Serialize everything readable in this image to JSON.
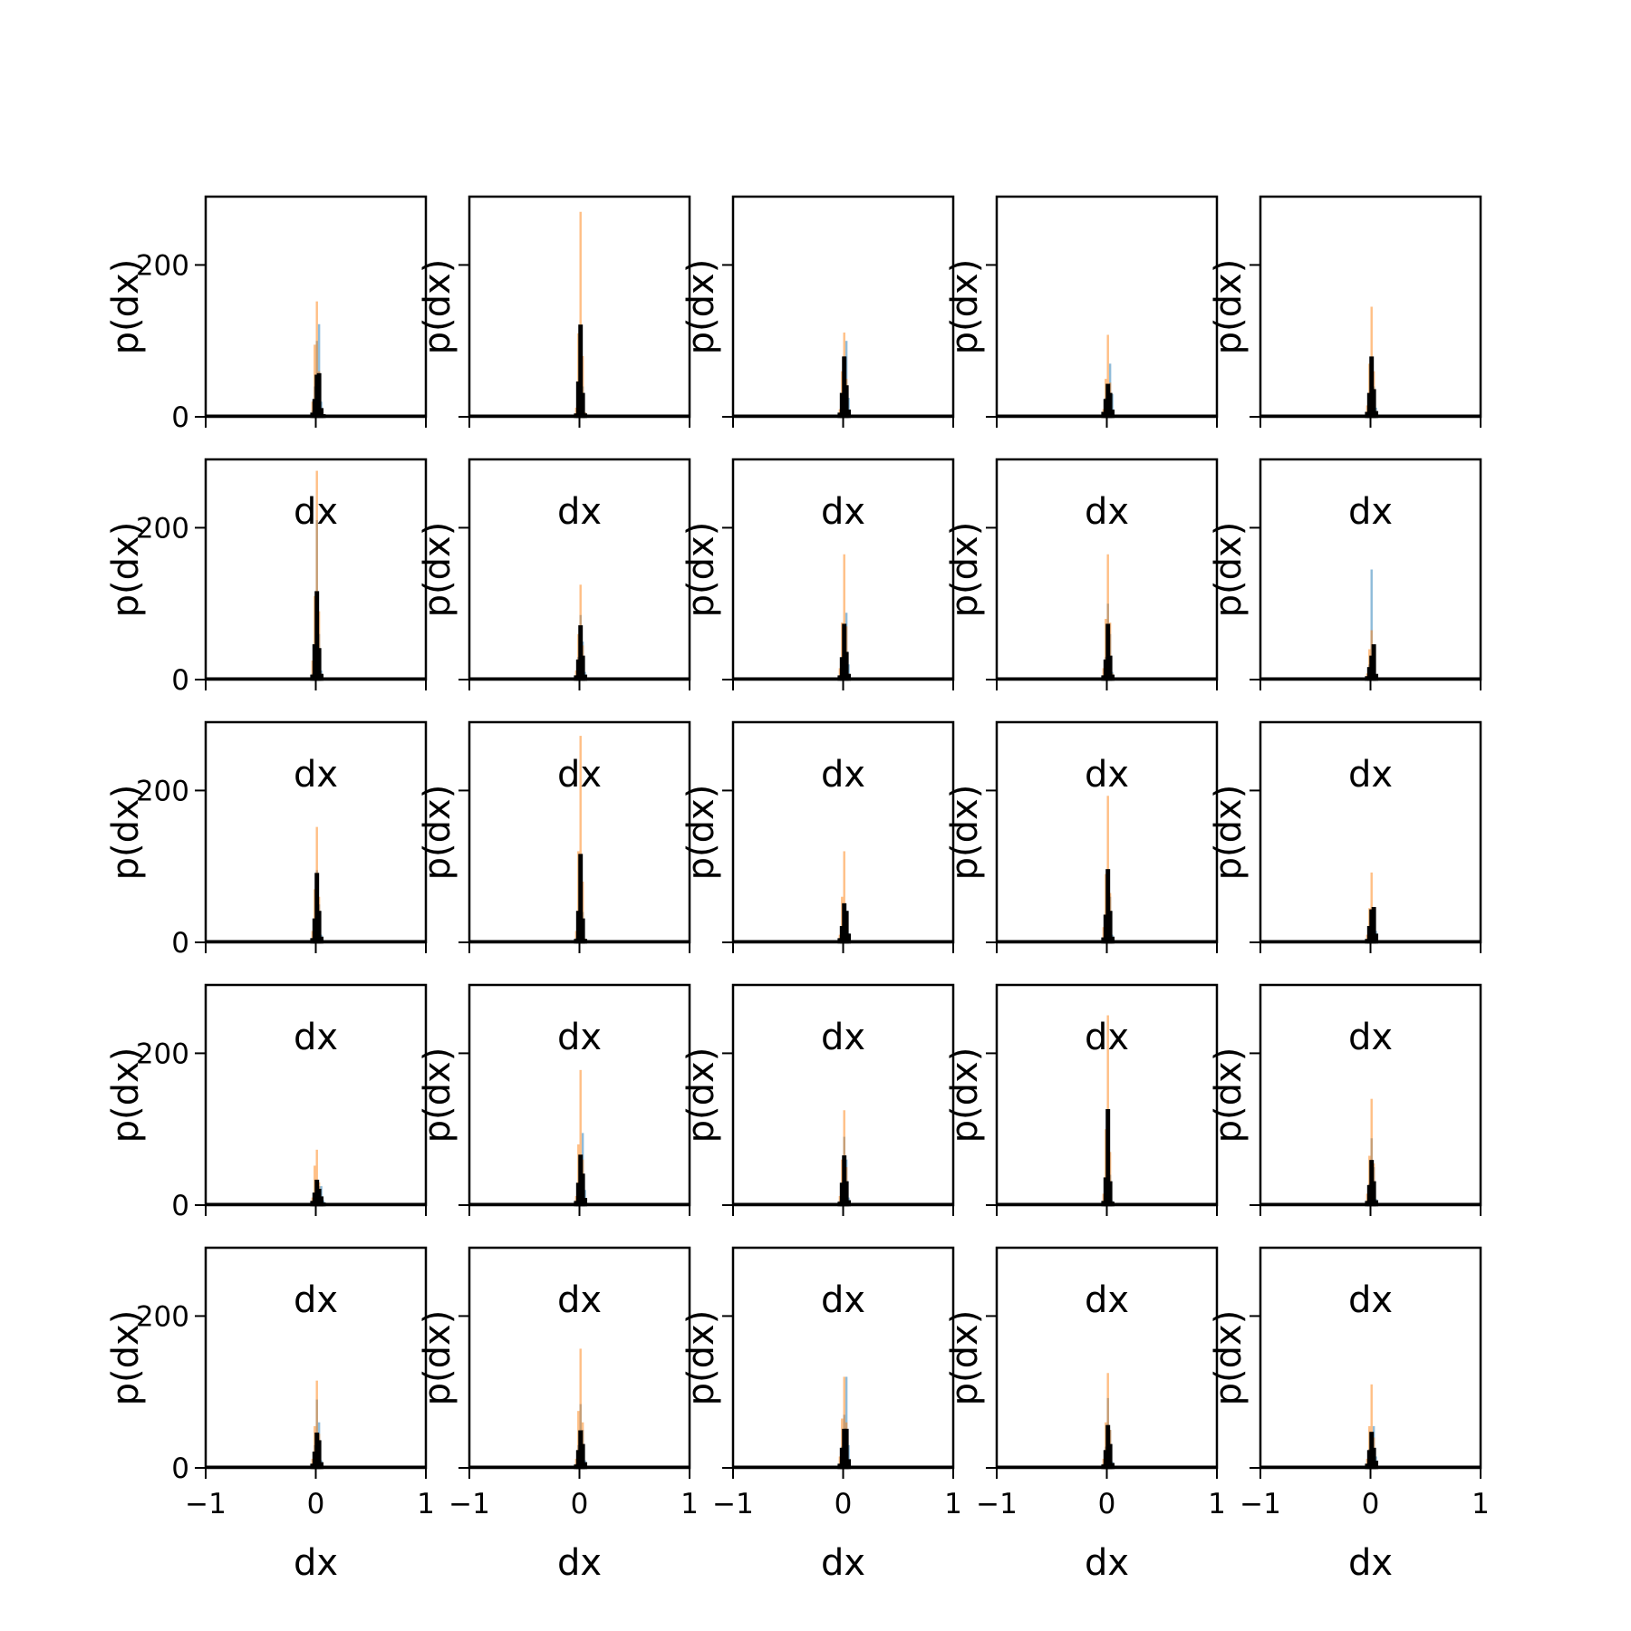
{
  "figure": {
    "background": "#ffffff",
    "rows": 5,
    "cols": 5
  },
  "style": {
    "series_colors": [
      "#1f77b4",
      "#ff7f0e",
      "#000000"
    ],
    "series_alpha": [
      0.5,
      0.5,
      1.0
    ]
  },
  "axis_labels": {
    "xlabel": "dx",
    "ylabel": "p(dx)"
  },
  "chart_data": {
    "type": "bar",
    "layout": "5x5 grid of histogram panels, shared x and y axes",
    "xlim": [
      -1,
      1
    ],
    "ylim": [
      0,
      290
    ],
    "x_ticks": [
      "−1",
      "0",
      "1"
    ],
    "y_ticks": [
      "0",
      "200"
    ],
    "bin_x": [
      -0.04,
      -0.02,
      0.0,
      0.02,
      0.04,
      0.06
    ],
    "grid": false,
    "legend": "none",
    "panels": [
      {
        "series": [
          {
            "values": [
              8,
              40,
              100,
              122,
              20,
              3
            ]
          },
          {
            "values": [
              20,
              95,
              152,
              60,
              6,
              0
            ]
          },
          {
            "values": [
              4,
              22,
              54,
              56,
              10,
              2
            ]
          }
        ]
      },
      {
        "series": [
          {
            "values": [
              4,
              35,
              92,
              40,
              6,
              0
            ]
          },
          {
            "values": [
              12,
              110,
              270,
              80,
              6,
              0
            ]
          },
          {
            "values": [
              3,
              45,
              120,
              30,
              3,
              0
            ]
          }
        ]
      },
      {
        "series": [
          {
            "values": [
              6,
              30,
              80,
              100,
              25,
              3
            ]
          },
          {
            "values": [
              10,
              60,
              111,
              50,
              8,
              0
            ]
          },
          {
            "values": [
              4,
              30,
              78,
              40,
              8,
              0
            ]
          }
        ]
      },
      {
        "series": [
          {
            "values": [
              6,
              25,
              40,
              70,
              30,
              2
            ]
          },
          {
            "values": [
              10,
              50,
              108,
              45,
              6,
              0
            ]
          },
          {
            "values": [
              5,
              22,
              42,
              30,
              8,
              0
            ]
          }
        ]
      },
      {
        "series": [
          {
            "values": [
              6,
              28,
              60,
              40,
              12,
              2
            ]
          },
          {
            "values": [
              15,
              70,
              145,
              60,
              8,
              0
            ]
          },
          {
            "values": [
              5,
              30,
              78,
              35,
              6,
              0
            ]
          }
        ]
      },
      {
        "series": [
          {
            "values": [
              8,
              40,
              210,
              60,
              12,
              2
            ]
          },
          {
            "values": [
              25,
              110,
              275,
              90,
              8,
              0
            ]
          },
          {
            "values": [
              5,
              45,
              115,
              40,
              6,
              0
            ]
          }
        ]
      },
      {
        "series": [
          {
            "values": [
              6,
              30,
              85,
              50,
              10,
              0
            ]
          },
          {
            "values": [
              12,
              60,
              125,
              45,
              5,
              0
            ]
          },
          {
            "values": [
              4,
              25,
              70,
              30,
              5,
              0
            ]
          }
        ]
      },
      {
        "series": [
          {
            "values": [
              6,
              30,
              60,
              88,
              20,
              2
            ]
          },
          {
            "values": [
              15,
              75,
              165,
              70,
              8,
              0
            ]
          },
          {
            "values": [
              4,
              28,
              72,
              35,
              6,
              0
            ]
          }
        ]
      },
      {
        "series": [
          {
            "values": [
              6,
              30,
              100,
              60,
              10,
              0
            ]
          },
          {
            "values": [
              15,
              80,
              165,
              75,
              8,
              0
            ]
          },
          {
            "values": [
              4,
              25,
              72,
              30,
              5,
              0
            ]
          }
        ]
      },
      {
        "series": [
          {
            "values": [
              4,
              20,
              145,
              40,
              6,
              0
            ]
          },
          {
            "values": [
              8,
              40,
              65,
              20,
              3,
              0
            ]
          },
          {
            "values": [
              3,
              15,
              30,
              45,
              6,
              0
            ]
          }
        ]
      },
      {
        "series": [
          {
            "values": [
              6,
              30,
              95,
              50,
              10,
              0
            ]
          },
          {
            "values": [
              15,
              70,
              152,
              60,
              6,
              0
            ]
          },
          {
            "values": [
              4,
              30,
              90,
              40,
              6,
              0
            ]
          }
        ]
      },
      {
        "series": [
          {
            "values": [
              6,
              40,
              95,
              40,
              5,
              0
            ]
          },
          {
            "values": [
              15,
              120,
              272,
              80,
              5,
              0
            ]
          },
          {
            "values": [
              3,
              40,
              115,
              30,
              3,
              0
            ]
          }
        ]
      },
      {
        "series": [
          {
            "values": [
              6,
              20,
              35,
              25,
              12,
              2
            ]
          },
          {
            "values": [
              10,
              60,
              120,
              40,
              5,
              0
            ]
          },
          {
            "values": [
              4,
              20,
              50,
              40,
              10,
              0
            ]
          }
        ]
      },
      {
        "series": [
          {
            "values": [
              6,
              30,
              95,
              60,
              10,
              0
            ]
          },
          {
            "values": [
              20,
              90,
              193,
              65,
              6,
              0
            ]
          },
          {
            "values": [
              5,
              35,
              95,
              40,
              6,
              0
            ]
          }
        ]
      },
      {
        "series": [
          {
            "values": [
              4,
              20,
              30,
              45,
              15,
              2
            ]
          },
          {
            "values": [
              10,
              45,
              92,
              40,
              5,
              0
            ]
          },
          {
            "values": [
              3,
              20,
              42,
              45,
              10,
              0
            ]
          }
        ]
      },
      {
        "series": [
          {
            "values": [
              6,
              15,
              20,
              25,
              25,
              6
            ]
          },
          {
            "values": [
              10,
              52,
              73,
              30,
              5,
              0
            ]
          },
          {
            "values": [
              4,
              15,
              32,
              20,
              10,
              2
            ]
          }
        ]
      },
      {
        "series": [
          {
            "values": [
              6,
              20,
              40,
              95,
              20,
              2
            ]
          },
          {
            "values": [
              12,
              80,
              178,
              60,
              6,
              0
            ]
          },
          {
            "values": [
              4,
              28,
              65,
              40,
              8,
              0
            ]
          }
        ]
      },
      {
        "series": [
          {
            "values": [
              6,
              30,
              90,
              60,
              10,
              0
            ]
          },
          {
            "values": [
              12,
              60,
              125,
              50,
              6,
              0
            ]
          },
          {
            "values": [
              3,
              28,
              64,
              30,
              5,
              0
            ]
          }
        ]
      },
      {
        "series": [
          {
            "values": [
              6,
              30,
              125,
              40,
              6,
              0
            ]
          },
          {
            "values": [
              15,
              100,
              250,
              70,
              5,
              0
            ]
          },
          {
            "values": [
              4,
              35,
              125,
              30,
              3,
              0
            ]
          }
        ]
      },
      {
        "series": [
          {
            "values": [
              6,
              28,
              88,
              50,
              8,
              0
            ]
          },
          {
            "values": [
              15,
              65,
              140,
              55,
              5,
              0
            ]
          },
          {
            "values": [
              4,
              25,
              58,
              30,
              5,
              0
            ]
          }
        ]
      },
      {
        "series": [
          {
            "values": [
              6,
              30,
              90,
              60,
              10,
              0
            ]
          },
          {
            "values": [
              12,
              55,
              115,
              45,
              5,
              0
            ]
          },
          {
            "values": [
              4,
              20,
              45,
              35,
              6,
              0
            ]
          }
        ]
      },
      {
        "series": [
          {
            "values": [
              6,
              30,
              84,
              50,
              10,
              0
            ]
          },
          {
            "values": [
              12,
              75,
              157,
              60,
              5,
              0
            ]
          },
          {
            "values": [
              3,
              22,
              48,
              30,
              6,
              0
            ]
          }
        ]
      },
      {
        "series": [
          {
            "values": [
              6,
              28,
              70,
              120,
              30,
              3
            ]
          },
          {
            "values": [
              15,
              65,
              120,
              60,
              8,
              0
            ]
          },
          {
            "values": [
              4,
              25,
              50,
              50,
              10,
              0
            ]
          }
        ]
      },
      {
        "series": [
          {
            "values": [
              6,
              28,
              92,
              50,
              8,
              0
            ]
          },
          {
            "values": [
              12,
              60,
              125,
              50,
              5,
              0
            ]
          },
          {
            "values": [
              3,
              22,
              55,
              30,
              5,
              0
            ]
          }
        ]
      },
      {
        "series": [
          {
            "values": [
              6,
              25,
              45,
              55,
              15,
              2
            ]
          },
          {
            "values": [
              12,
              55,
              110,
              40,
              5,
              0
            ]
          },
          {
            "values": [
              4,
              22,
              46,
              25,
              8,
              0
            ]
          }
        ]
      }
    ]
  }
}
